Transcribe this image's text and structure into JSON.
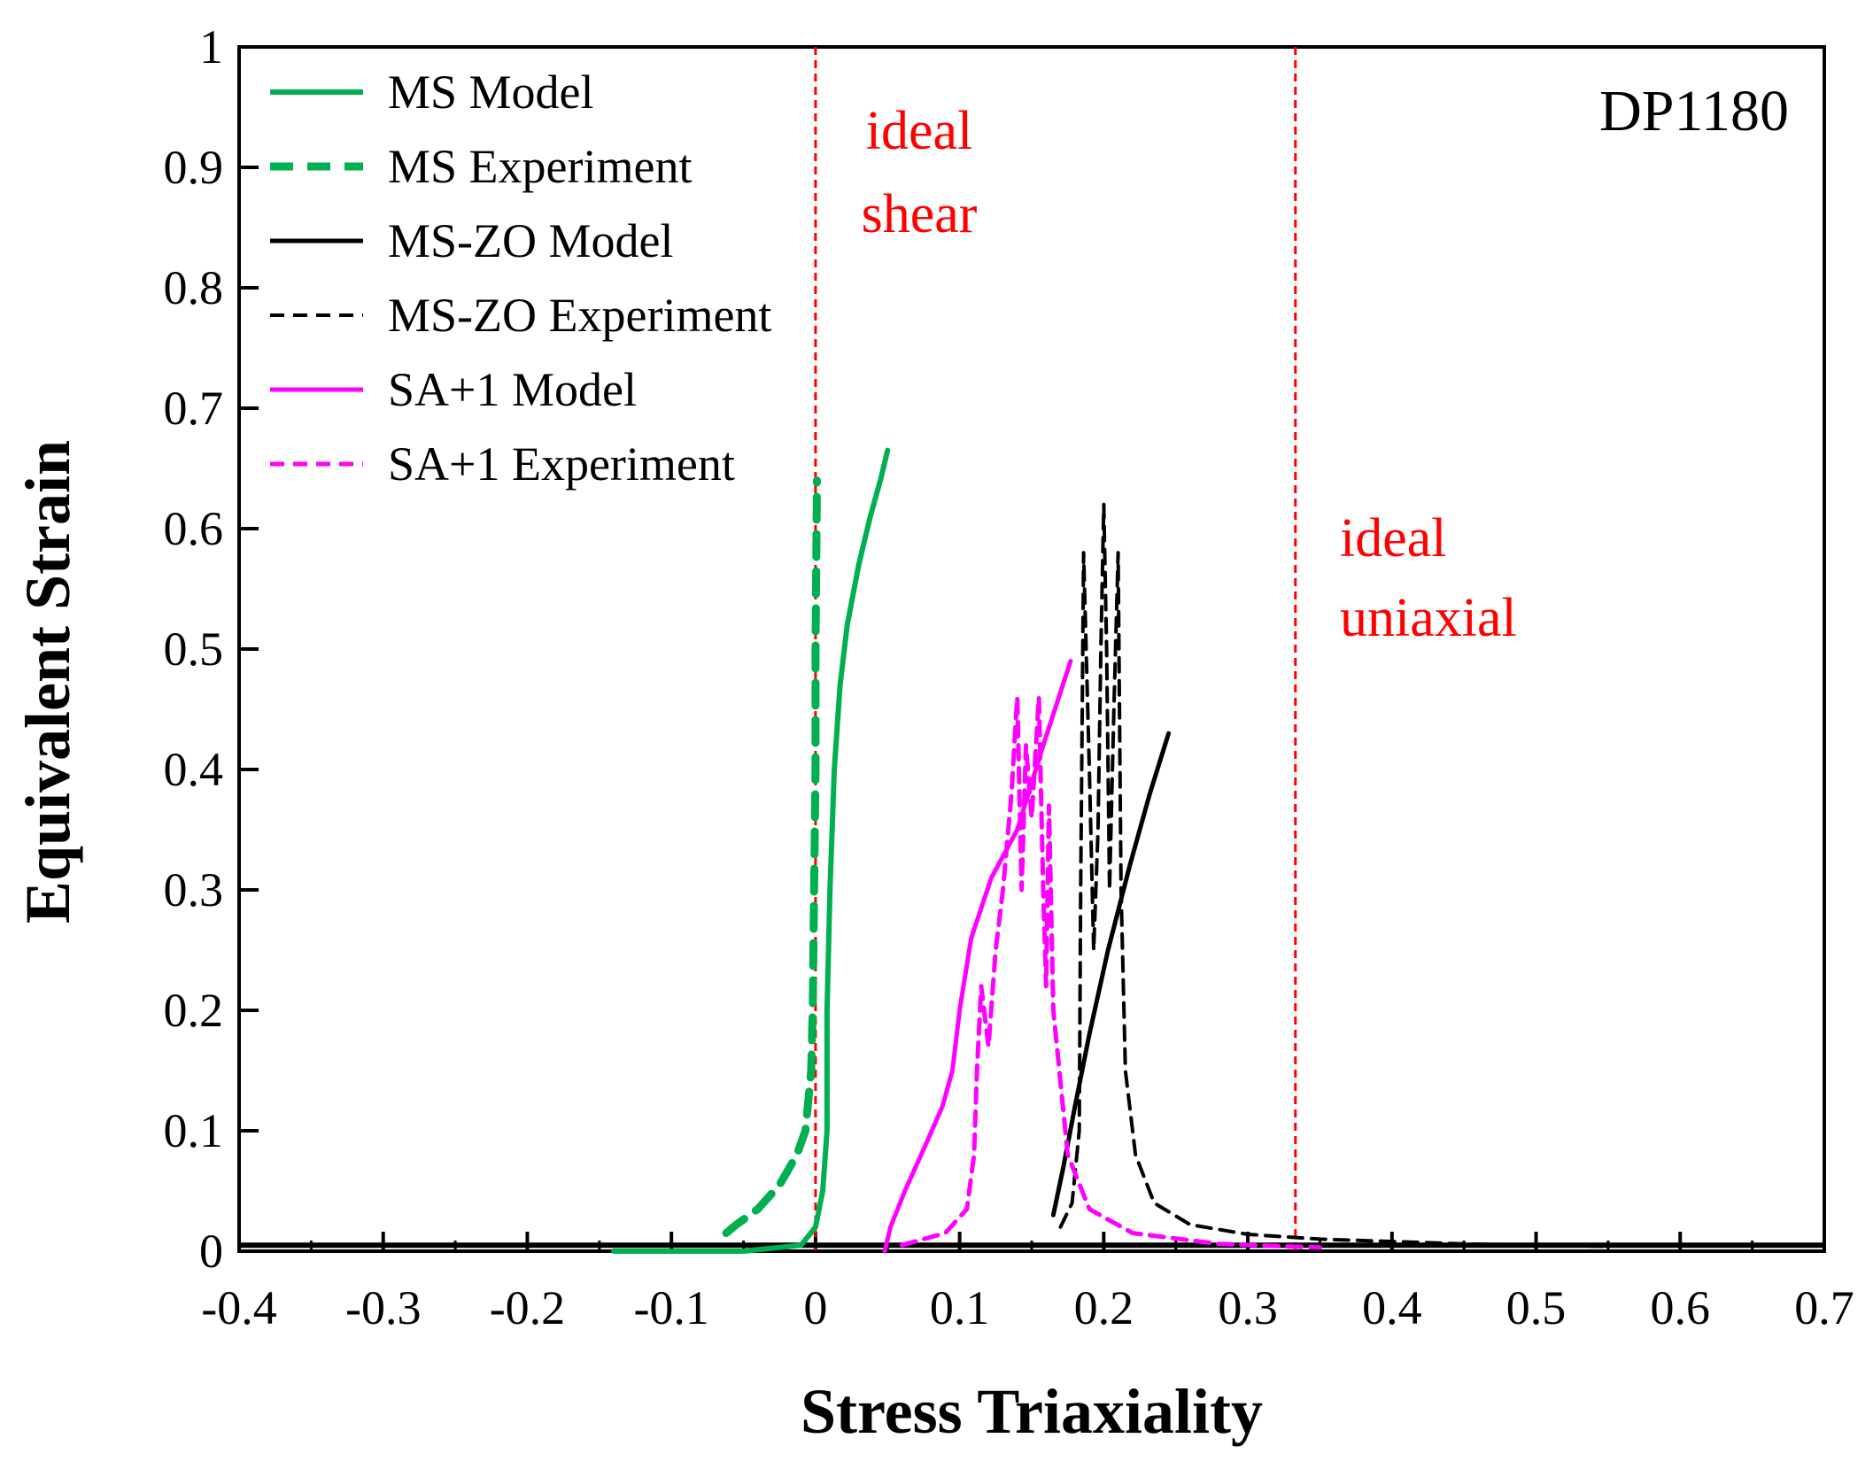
{
  "chart_data": {
    "type": "line",
    "tag": "DP1180",
    "xlabel": "Stress Triaxiality",
    "ylabel": "Equivalent Strain",
    "xlim": [
      -0.4,
      0.7
    ],
    "ylim": [
      0,
      1
    ],
    "xticks": [
      "-0.4",
      "-0.3",
      "-0.2",
      "-0.1",
      "0",
      "0.1",
      "0.2",
      "0.3",
      "0.4",
      "0.5",
      "0.6",
      "0.7"
    ],
    "yticks": [
      "0",
      "0.1",
      "0.2",
      "0.3",
      "0.4",
      "0.5",
      "0.6",
      "0.7",
      "0.8",
      "0.9",
      "1"
    ],
    "legend_position": "top-left",
    "reference_lines": [
      {
        "x": 0.0,
        "label_lines": [
          "ideal",
          "shear"
        ],
        "color": "#ff0000"
      },
      {
        "x": 0.333,
        "label_lines": [
          "ideal",
          "uniaxial"
        ],
        "color": "#ff0000"
      }
    ],
    "series": [
      {
        "name": "MS Model",
        "color": "#00b050",
        "dash": "solid",
        "width": 6,
        "x": [
          -0.14,
          -0.05,
          -0.01,
          0.0,
          0.005,
          0.008,
          0.008,
          0.01,
          0.013,
          0.017,
          0.022,
          0.03,
          0.038,
          0.045,
          0.05
        ],
        "y": [
          0.0,
          0.0,
          0.005,
          0.02,
          0.05,
          0.1,
          0.2,
          0.3,
          0.4,
          0.47,
          0.52,
          0.57,
          0.61,
          0.64,
          0.665
        ]
      },
      {
        "name": "MS Experiment",
        "color": "#00b050",
        "dash": "long",
        "width": 9,
        "x": [
          -0.062,
          -0.055,
          -0.04,
          -0.025,
          -0.013,
          -0.007,
          -0.003,
          -0.002,
          -0.001,
          0.0,
          0.0,
          0.001
        ],
        "y": [
          0.015,
          0.022,
          0.035,
          0.055,
          0.08,
          0.1,
          0.15,
          0.2,
          0.3,
          0.4,
          0.5,
          0.64
        ]
      },
      {
        "name": "MS-ZO Model",
        "color": "#000000",
        "dash": "solid",
        "width": 5,
        "x": [
          0.165,
          0.172,
          0.18,
          0.19,
          0.203,
          0.218,
          0.232,
          0.245
        ],
        "y": [
          0.03,
          0.07,
          0.12,
          0.18,
          0.25,
          0.32,
          0.38,
          0.43
        ]
      },
      {
        "name": "MS-ZO Experiment",
        "color": "#000000",
        "dash": "short",
        "width": 4,
        "x": [
          0.17,
          0.178,
          0.183,
          0.184,
          0.186,
          0.19,
          0.193,
          0.196,
          0.198,
          0.2,
          0.202,
          0.204,
          0.207,
          0.21,
          0.212,
          0.215,
          0.222,
          0.235,
          0.26,
          0.3,
          0.35,
          0.45,
          0.55
        ],
        "y": [
          0.02,
          0.04,
          0.1,
          0.3,
          0.58,
          0.4,
          0.25,
          0.35,
          0.5,
          0.62,
          0.5,
          0.3,
          0.45,
          0.58,
          0.3,
          0.15,
          0.08,
          0.04,
          0.022,
          0.014,
          0.01,
          0.006,
          0.004
        ]
      },
      {
        "name": "SA+1 Model",
        "color": "#ff00ff",
        "dash": "solid",
        "width": 5,
        "x": [
          0.048,
          0.052,
          0.062,
          0.077,
          0.088,
          0.095,
          0.1,
          0.108,
          0.122,
          0.14,
          0.158,
          0.177
        ],
        "y": [
          0.0,
          0.02,
          0.05,
          0.09,
          0.12,
          0.15,
          0.2,
          0.26,
          0.31,
          0.35,
          0.42,
          0.49
        ]
      },
      {
        "name": "SA+1 Experiment",
        "color": "#ff00ff",
        "dash": "short",
        "width": 5,
        "x": [
          0.06,
          0.09,
          0.105,
          0.11,
          0.112,
          0.115,
          0.12,
          0.125,
          0.13,
          0.136,
          0.14,
          0.143,
          0.146,
          0.15,
          0.155,
          0.158,
          0.16,
          0.162,
          0.165,
          0.175,
          0.19,
          0.22,
          0.28,
          0.35
        ],
        "y": [
          0.005,
          0.015,
          0.035,
          0.08,
          0.15,
          0.22,
          0.17,
          0.25,
          0.3,
          0.38,
          0.46,
          0.3,
          0.42,
          0.36,
          0.46,
          0.3,
          0.22,
          0.37,
          0.2,
          0.08,
          0.035,
          0.015,
          0.006,
          0.003
        ]
      }
    ]
  }
}
